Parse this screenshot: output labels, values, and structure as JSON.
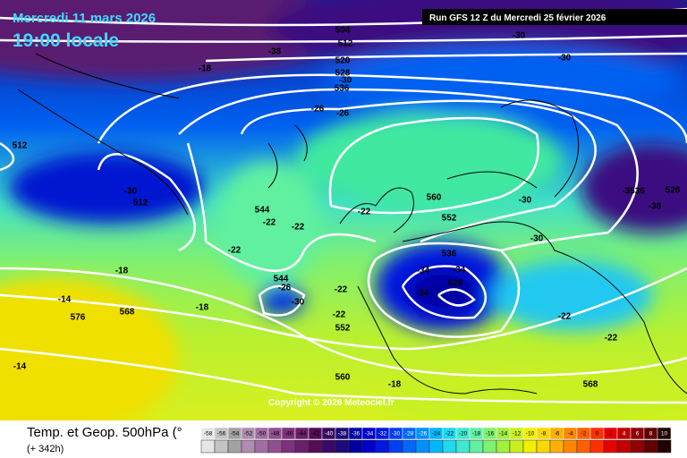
{
  "header": {
    "date": "Mercredi 11 mars 2026",
    "time": "19:00 locale",
    "run": "Run GFS 12 Z du Mercredi 25 février 2026"
  },
  "copyright": "Copyright © 2026 Meteociel.fr",
  "footer": {
    "title": "Temp. et Geop. 500hPa (°",
    "lead": "(+ 342h)"
  },
  "map_labels": [
    "504",
    "512",
    "-38",
    "520",
    "528",
    "-30",
    "536",
    "-26",
    "-26",
    "512",
    "-30",
    "512",
    "544",
    "-22",
    "-22",
    "-22",
    "560",
    "552",
    "-22",
    "536",
    "-34",
    "-34",
    "528",
    "-34",
    "544",
    "-26",
    "-30",
    "-22",
    "-22",
    "552",
    "-18",
    "-14",
    "568",
    "576",
    "-18",
    "-14",
    "560",
    "-18",
    "568",
    "-22",
    "-22",
    "-30",
    "-30",
    "-3536",
    "528",
    "-38",
    "-30",
    "-18",
    "-30"
  ],
  "scale": {
    "labels": [
      -58,
      -56,
      -54,
      -52,
      -50,
      -48,
      -46,
      -44,
      -42,
      -40,
      -38,
      -36,
      -34,
      -32,
      -30,
      -28,
      -26,
      -24,
      -22,
      -20,
      -18,
      -16,
      -14,
      -12,
      -10,
      -8,
      -6,
      -4,
      -2,
      0,
      2,
      4,
      6,
      8,
      10
    ],
    "colors": [
      "#e6e6e6",
      "#c4c4c4",
      "#a2a2a2",
      "#b08cb0",
      "#a06ea0",
      "#905090",
      "#803080",
      "#682068",
      "#560c56",
      "#3a0a64",
      "#1c0a78",
      "#0000a0",
      "#0000c8",
      "#0018e0",
      "#0040f0",
      "#0068f8",
      "#0090ff",
      "#00b8ff",
      "#20d8f0",
      "#40e8d0",
      "#60f0a0",
      "#80f070",
      "#a0f040",
      "#c8f020",
      "#f0f000",
      "#f8d800",
      "#ffb000",
      "#ff8800",
      "#ff6000",
      "#ff3000",
      "#e80000",
      "#c00000",
      "#900000",
      "#600000",
      "#200000"
    ]
  }
}
